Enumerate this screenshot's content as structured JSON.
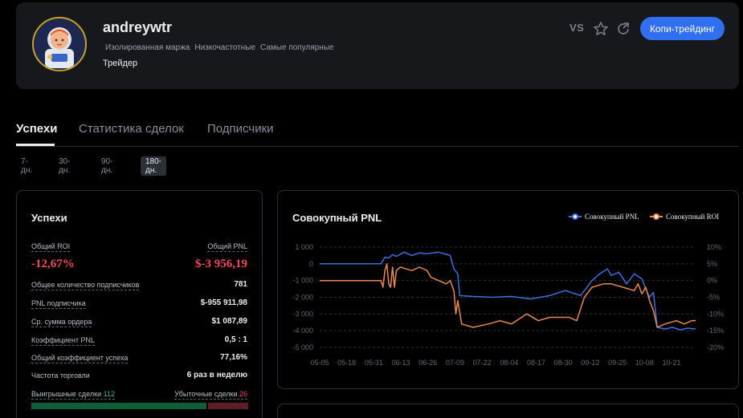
{
  "profile": {
    "username": "andreywtr",
    "tags": [
      "Изолированная маржа",
      "Низкочастотные",
      "Самые популярные"
    ],
    "role": "Трейдер",
    "vs_label": "VS",
    "copy_button": "Копи-трейдинг"
  },
  "tabs": [
    {
      "label": "Успехи",
      "active": true
    },
    {
      "label": "Статистика сделок",
      "active": false
    },
    {
      "label": "Подписчики",
      "active": false
    }
  ],
  "periods": [
    {
      "label": "7-дн.",
      "active": false
    },
    {
      "label": "30-дн.",
      "active": false
    },
    {
      "label": "90-дн.",
      "active": false
    },
    {
      "label": "180-дн.",
      "active": true
    }
  ],
  "performance": {
    "title": "Успехи",
    "roi_label": "Общий ROI",
    "roi_value": "-12,67%",
    "pnl_label": "Общий PNL",
    "pnl_value": "$-3 956,19",
    "stats": [
      {
        "label": "Общее количество подписчиков",
        "value": "781"
      },
      {
        "label": "PNL подписчика",
        "value": "$-955 911,98"
      },
      {
        "label": "Ср. сумма ордера",
        "value": "$1 087,89"
      },
      {
        "label": "Коэффициент PNL",
        "value": "0,5 : 1"
      },
      {
        "label": "Общий коэффициент успеха",
        "value": "77,16%"
      },
      {
        "label": "Частота торговли",
        "value": "6 раз в неделю"
      }
    ],
    "win_label": "Выигрышные сделки",
    "win_value": "112",
    "loss_label": "Убыточные сделки",
    "loss_value": "26",
    "colors": {
      "positive": "#2ebd85",
      "negative": "#f6465d"
    }
  },
  "chart_data": {
    "type": "line",
    "title": "Совокупный PNL",
    "legend_position": "top-right",
    "x_ticks": [
      "05-05",
      "05-18",
      "05-31",
      "06-13",
      "06-26",
      "07-09",
      "07-22",
      "08-04",
      "08-17",
      "08-30",
      "09-12",
      "09-25",
      "10-08",
      "10-21"
    ],
    "y_left_ticks": [
      "1 000",
      "0",
      "-1 000",
      "-2 000",
      "-3 000",
      "-4 000",
      "-5 000"
    ],
    "y_left_range": [
      -5000,
      1000
    ],
    "y_right_ticks": [
      "10%",
      "5%",
      "0%",
      "-5%",
      "-10%",
      "-15%",
      "-20%"
    ],
    "y_right_range": [
      -20,
      10
    ],
    "grid": true,
    "series": [
      {
        "name": "Совокупный PNL",
        "color": "#3b6fdc",
        "axis": "left",
        "points": [
          [
            0,
            0
          ],
          [
            32,
            0
          ],
          [
            34,
            400
          ],
          [
            36,
            350
          ],
          [
            38,
            550
          ],
          [
            40,
            450
          ],
          [
            44,
            700
          ],
          [
            48,
            500
          ],
          [
            52,
            650
          ],
          [
            56,
            600
          ],
          [
            62,
            700
          ],
          [
            68,
            500
          ],
          [
            70,
            -300
          ],
          [
            72,
            -600
          ],
          [
            73,
            -1900
          ],
          [
            80,
            -1950
          ],
          [
            90,
            -2000
          ],
          [
            100,
            -1950
          ],
          [
            110,
            -2100
          ],
          [
            120,
            -1900
          ],
          [
            128,
            -1600
          ],
          [
            136,
            -1900
          ],
          [
            142,
            -1000
          ],
          [
            146,
            -600
          ],
          [
            150,
            -300
          ],
          [
            152,
            -700
          ],
          [
            156,
            -500
          ],
          [
            160,
            -1200
          ],
          [
            164,
            -600
          ],
          [
            168,
            -900
          ],
          [
            170,
            -1500
          ],
          [
            172,
            -2000
          ],
          [
            174,
            -1700
          ],
          [
            176,
            -3800
          ],
          [
            180,
            -3900
          ],
          [
            184,
            -3800
          ],
          [
            188,
            -3950
          ],
          [
            192,
            -3850
          ],
          [
            196,
            -3900
          ]
        ]
      },
      {
        "name": "Совокупный ROI",
        "color": "#e8894a",
        "axis": "right",
        "points": [
          [
            0,
            0
          ],
          [
            32,
            0
          ],
          [
            33,
            -2
          ],
          [
            34,
            3
          ],
          [
            35,
            5
          ],
          [
            36,
            -1
          ],
          [
            37,
            -2
          ],
          [
            38,
            4
          ],
          [
            39,
            -2
          ],
          [
            40,
            3
          ],
          [
            42,
            4
          ],
          [
            48,
            3
          ],
          [
            52,
            4
          ],
          [
            56,
            3
          ],
          [
            58,
            1
          ],
          [
            62,
            0
          ],
          [
            66,
            -1
          ],
          [
            68,
            0
          ],
          [
            70,
            -3
          ],
          [
            71,
            -10
          ],
          [
            72,
            -6
          ],
          [
            74,
            -13
          ],
          [
            80,
            -14
          ],
          [
            88,
            -13
          ],
          [
            94,
            -12
          ],
          [
            100,
            -13
          ],
          [
            108,
            -10
          ],
          [
            114,
            -12
          ],
          [
            120,
            -11
          ],
          [
            126,
            -11
          ],
          [
            130,
            -11
          ],
          [
            134,
            -12
          ],
          [
            138,
            -5
          ],
          [
            142,
            -2
          ],
          [
            148,
            -1
          ],
          [
            152,
            -1
          ],
          [
            158,
            -2
          ],
          [
            164,
            -3
          ],
          [
            166,
            -1
          ],
          [
            168,
            -4
          ],
          [
            170,
            -2
          ],
          [
            172,
            -6
          ],
          [
            174,
            -9
          ],
          [
            176,
            -14
          ],
          [
            180,
            -13
          ],
          [
            186,
            -12
          ],
          [
            190,
            -13
          ],
          [
            194,
            -12
          ],
          [
            196,
            -12
          ]
        ]
      }
    ],
    "x_max": 196
  }
}
